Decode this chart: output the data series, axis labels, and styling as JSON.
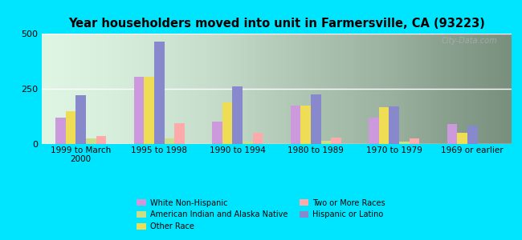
{
  "title": "Year householders moved into unit in Farmersville, CA (93223)",
  "categories": [
    "1999 to March\n2000",
    "1995 to 1998",
    "1990 to 1994",
    "1980 to 1989",
    "1970 to 1979",
    "1969 or earlier"
  ],
  "series_order": [
    "White Non-Hispanic",
    "Other Race",
    "Hispanic or Latino",
    "American Indian and Alaska Native",
    "Two or More Races"
  ],
  "series": {
    "White Non-Hispanic": [
      120,
      305,
      100,
      175,
      120,
      90
    ],
    "Other Race": [
      150,
      305,
      190,
      175,
      165,
      50
    ],
    "Hispanic or Latino": [
      220,
      465,
      260,
      225,
      170,
      85
    ],
    "American Indian and Alaska Native": [
      25,
      25,
      10,
      15,
      10,
      0
    ],
    "Two or More Races": [
      35,
      95,
      50,
      30,
      25,
      0
    ]
  },
  "colors": {
    "White Non-Hispanic": "#cc99dd",
    "Other Race": "#eedd55",
    "Hispanic or Latino": "#8888cc",
    "American Indian and Alaska Native": "#ccdd88",
    "Two or More Races": "#ffaaaa"
  },
  "ylim": [
    0,
    500
  ],
  "yticks": [
    0,
    250,
    500
  ],
  "bg_outer": "#00e5ff",
  "bg_plot_color": "#c8f0d0",
  "watermark": "City-Data.com",
  "legend_order": [
    "White Non-Hispanic",
    "American Indian and Alaska Native",
    "Other Race",
    "Two or More Races",
    "Hispanic or Latino"
  ]
}
